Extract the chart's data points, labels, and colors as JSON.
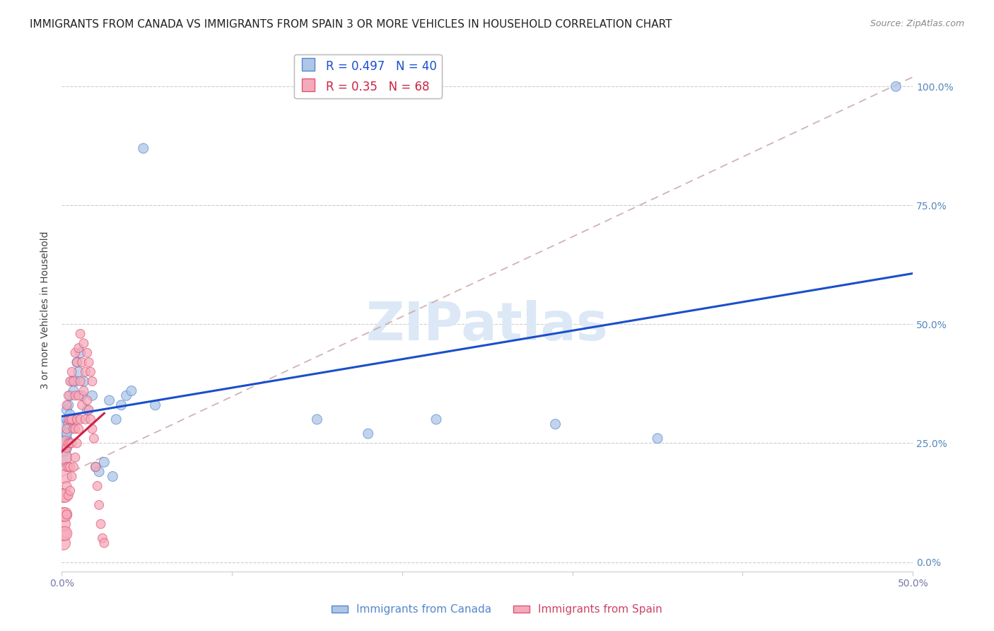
{
  "title": "IMMIGRANTS FROM CANADA VS IMMIGRANTS FROM SPAIN 3 OR MORE VEHICLES IN HOUSEHOLD CORRELATION CHART",
  "source": "Source: ZipAtlas.com",
  "ylabel": "3 or more Vehicles in Household",
  "xlim": [
    0.0,
    0.5
  ],
  "ylim": [
    -0.02,
    1.08
  ],
  "xticks": [
    0.0,
    0.1,
    0.2,
    0.3,
    0.4,
    0.5
  ],
  "xtick_labels": [
    "0.0%",
    "",
    "",
    "",
    "",
    "50.0%"
  ],
  "yticks": [
    0.0,
    0.25,
    0.5,
    0.75,
    1.0
  ],
  "ytick_labels": [
    "0.0%",
    "25.0%",
    "50.0%",
    "75.0%",
    "100.0%"
  ],
  "canada_R": 0.497,
  "canada_N": 40,
  "spain_R": 0.35,
  "spain_N": 68,
  "canada_color": "#aec6e8",
  "canada_edge": "#5588cc",
  "spain_color": "#f5aaba",
  "spain_edge": "#e05575",
  "canada_line_color": "#1a4fcc",
  "spain_line_color": "#cc2244",
  "ref_line_color": "#ccaaaa",
  "background_color": "#ffffff",
  "watermark": "ZIPatlas",
  "watermark_color": "#dce8f5",
  "title_fontsize": 11,
  "tick_fontsize": 10,
  "legend_fontsize": 12,
  "source_fontsize": 9,
  "canada_x": [
    0.001,
    0.001,
    0.001,
    0.002,
    0.002,
    0.003,
    0.003,
    0.003,
    0.004,
    0.004,
    0.005,
    0.005,
    0.006,
    0.006,
    0.007,
    0.008,
    0.009,
    0.01,
    0.011,
    0.012,
    0.013,
    0.015,
    0.018,
    0.02,
    0.022,
    0.025,
    0.028,
    0.03,
    0.032,
    0.035,
    0.038,
    0.041,
    0.048,
    0.055,
    0.15,
    0.18,
    0.22,
    0.29,
    0.35,
    0.49
  ],
  "canada_y": [
    0.22,
    0.24,
    0.26,
    0.25,
    0.28,
    0.27,
    0.3,
    0.32,
    0.29,
    0.33,
    0.31,
    0.35,
    0.3,
    0.38,
    0.36,
    0.38,
    0.42,
    0.4,
    0.44,
    0.35,
    0.38,
    0.32,
    0.35,
    0.2,
    0.19,
    0.21,
    0.34,
    0.18,
    0.3,
    0.33,
    0.35,
    0.36,
    0.87,
    0.33,
    0.3,
    0.27,
    0.3,
    0.29,
    0.26,
    1.0
  ],
  "spain_x": [
    0.001,
    0.001,
    0.001,
    0.001,
    0.001,
    0.002,
    0.002,
    0.002,
    0.002,
    0.002,
    0.002,
    0.003,
    0.003,
    0.003,
    0.003,
    0.003,
    0.003,
    0.004,
    0.004,
    0.004,
    0.004,
    0.004,
    0.005,
    0.005,
    0.005,
    0.005,
    0.005,
    0.006,
    0.006,
    0.006,
    0.006,
    0.007,
    0.007,
    0.007,
    0.008,
    0.008,
    0.008,
    0.008,
    0.009,
    0.009,
    0.009,
    0.01,
    0.01,
    0.01,
    0.011,
    0.011,
    0.011,
    0.012,
    0.012,
    0.013,
    0.013,
    0.014,
    0.014,
    0.015,
    0.015,
    0.016,
    0.016,
    0.017,
    0.017,
    0.018,
    0.018,
    0.019,
    0.02,
    0.021,
    0.022,
    0.023,
    0.024,
    0.025
  ],
  "spain_y": [
    0.04,
    0.06,
    0.08,
    0.1,
    0.14,
    0.06,
    0.1,
    0.14,
    0.18,
    0.22,
    0.25,
    0.1,
    0.16,
    0.2,
    0.24,
    0.28,
    0.33,
    0.14,
    0.2,
    0.25,
    0.3,
    0.35,
    0.15,
    0.2,
    0.25,
    0.3,
    0.38,
    0.18,
    0.25,
    0.3,
    0.4,
    0.2,
    0.28,
    0.38,
    0.22,
    0.28,
    0.35,
    0.44,
    0.25,
    0.3,
    0.42,
    0.28,
    0.35,
    0.45,
    0.3,
    0.38,
    0.48,
    0.33,
    0.42,
    0.36,
    0.46,
    0.3,
    0.4,
    0.34,
    0.44,
    0.32,
    0.42,
    0.3,
    0.4,
    0.28,
    0.38,
    0.26,
    0.2,
    0.16,
    0.12,
    0.08,
    0.05,
    0.04
  ]
}
